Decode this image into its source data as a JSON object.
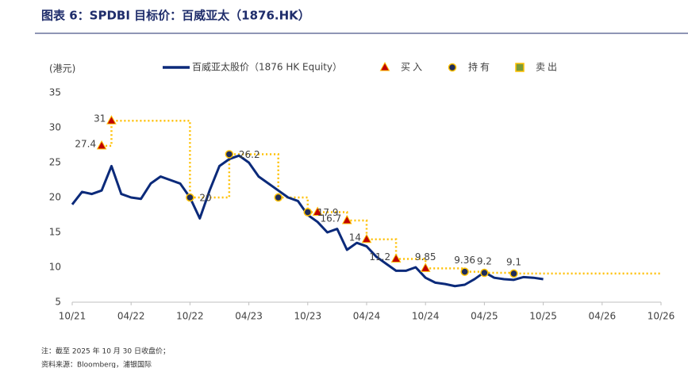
{
  "chart_data": {
    "type": "line",
    "title": "图表 6：SPDBI 目标价：百威亚太（1876.HK）",
    "y_label": "(港元)",
    "notes": [
      "注：截至 2025 年 10 月 30 日收盘价；",
      "资料来源：Bloomberg，浦银国际"
    ],
    "xlim": [
      "2021-10",
      "2026-10"
    ],
    "xticks": [
      {
        "value": "2021-10",
        "label": "10/21"
      },
      {
        "value": "2022-04",
        "label": "04/22"
      },
      {
        "value": "2022-10",
        "label": "10/22"
      },
      {
        "value": "2023-04",
        "label": "04/23"
      },
      {
        "value": "2023-10",
        "label": "10/23"
      },
      {
        "value": "2024-04",
        "label": "04/24"
      },
      {
        "value": "2024-10",
        "label": "10/24"
      },
      {
        "value": "2025-04",
        "label": "04/25"
      },
      {
        "value": "2025-10",
        "label": "10/25"
      },
      {
        "value": "2026-04",
        "label": "04/26"
      },
      {
        "value": "2026-10",
        "label": "10/26"
      }
    ],
    "ylim": [
      5,
      35
    ],
    "yticks": [
      5,
      10,
      15,
      20,
      25,
      30,
      35
    ],
    "target_line_color": "#ffc000",
    "series": [
      {
        "name": "百威亚太股价（1876 HK Equity）",
        "color": "#0b2a7a",
        "x": [
          "2021-10",
          "2021-11",
          "2021-12",
          "2022-01",
          "2022-02",
          "2022-03",
          "2022-04",
          "2022-05",
          "2022-06",
          "2022-07",
          "2022-08",
          "2022-09",
          "2022-10",
          "2022-11",
          "2022-12",
          "2023-01",
          "2023-02",
          "2023-03",
          "2023-04",
          "2023-05",
          "2023-06",
          "2023-07",
          "2023-08",
          "2023-09",
          "2023-10",
          "2023-11",
          "2023-12",
          "2024-01",
          "2024-02",
          "2024-03",
          "2024-04",
          "2024-05",
          "2024-06",
          "2024-07",
          "2024-08",
          "2024-09",
          "2024-10",
          "2024-11",
          "2024-12",
          "2025-01",
          "2025-02",
          "2025-03",
          "2025-04",
          "2025-05",
          "2025-06",
          "2025-07",
          "2025-08",
          "2025-09",
          "2025-10"
        ],
        "values": [
          19,
          20.8,
          20.5,
          21,
          24.5,
          20.5,
          20,
          19.8,
          22,
          23,
          22.5,
          22,
          20,
          17,
          21,
          24.5,
          25.5,
          26,
          25,
          23,
          22,
          21,
          20,
          19.5,
          17.5,
          16.5,
          15,
          15.5,
          12.5,
          13.5,
          13,
          11.5,
          10.5,
          9.5,
          9.5,
          10,
          8.5,
          7.8,
          7.6,
          7.3,
          7.5,
          8.3,
          9.3,
          8.5,
          8.3,
          8.2,
          8.6,
          8.5,
          8.3
        ]
      },
      {
        "name": "买入",
        "color": "#c00000",
        "marker": "triangle",
        "x": [
          "2022-01",
          "2022-02",
          "2023-11",
          "2024-02",
          "2024-04",
          "2024-07",
          "2024-10"
        ],
        "values": [
          27.4,
          31,
          17.9,
          16.7,
          14,
          11.2,
          9.85
        ],
        "value_labels": [
          "27.4",
          "31",
          null,
          "16.7",
          "14",
          "11.2",
          "9.85"
        ]
      },
      {
        "name": "持有",
        "color": "#1f2d5a",
        "marker": "circle",
        "x": [
          "2022-10",
          "2023-02",
          "2023-07",
          "2023-10",
          "2025-02",
          "2025-04",
          "2025-07"
        ],
        "values": [
          20,
          26.2,
          20,
          17.9,
          9.36,
          9.2,
          9.1
        ],
        "value_labels": [
          "20",
          "26.2",
          null,
          "17.9",
          "9.36",
          "9.2",
          "9.1"
        ]
      },
      {
        "name": "卖出",
        "color": "#7a9a3a",
        "marker": "square",
        "x": [],
        "values": [],
        "value_labels": []
      }
    ]
  }
}
